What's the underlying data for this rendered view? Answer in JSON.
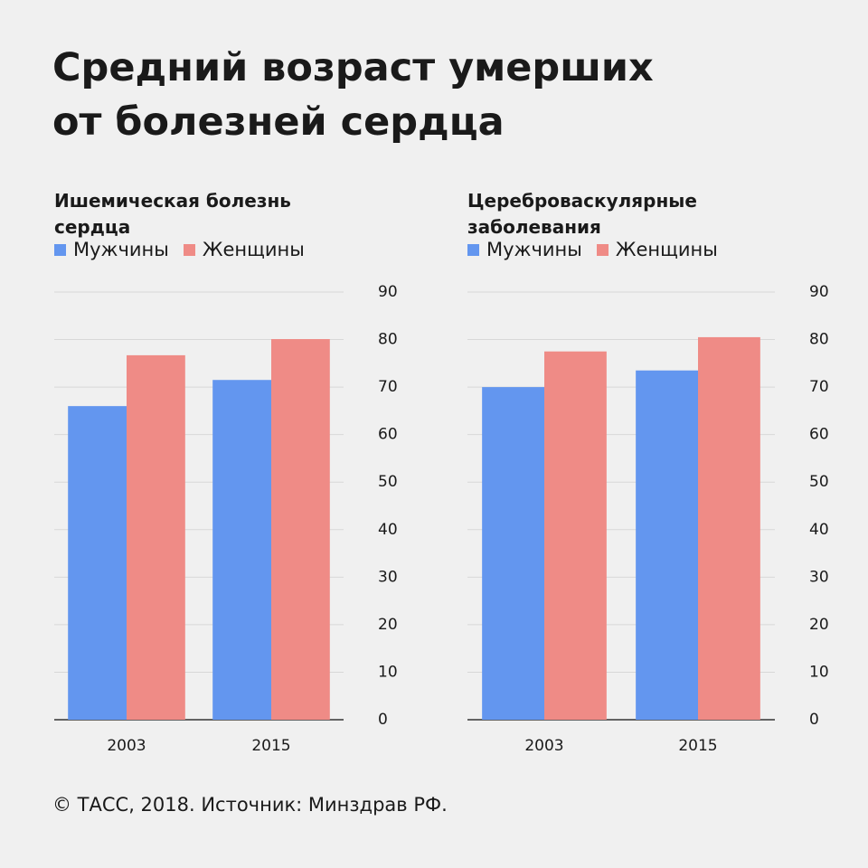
{
  "title": [
    "Средний возраст умерших",
    "от болезней сердца"
  ],
  "chart_data": [
    {
      "type": "bar",
      "title": "Ишемическая болезнь сердца",
      "categories": [
        "2003",
        "2015"
      ],
      "series": [
        {
          "name": "Мужчины",
          "color": "#6396ef",
          "values": [
            66,
            71.5
          ]
        },
        {
          "name": "Женщины",
          "color": "#ef8b86",
          "values": [
            76.7,
            80.1
          ]
        }
      ],
      "ylim": [
        0,
        90
      ],
      "yticks": [
        0,
        10,
        20,
        30,
        40,
        50,
        60,
        70,
        80,
        90
      ],
      "grid": true
    },
    {
      "type": "bar",
      "title": "Цереброваскулярные заболевания",
      "categories": [
        "2003",
        "2015"
      ],
      "series": [
        {
          "name": "Мужчины",
          "color": "#6396ef",
          "values": [
            70,
            73.5
          ]
        },
        {
          "name": "Женщины",
          "color": "#ef8b86",
          "values": [
            77.5,
            80.5
          ]
        }
      ],
      "ylim": [
        0,
        90
      ],
      "yticks": [
        0,
        10,
        20,
        30,
        40,
        50,
        60,
        70,
        80,
        90
      ],
      "grid": true
    }
  ],
  "source": "© ТАСС, 2018. Источник: Минздрав РФ."
}
